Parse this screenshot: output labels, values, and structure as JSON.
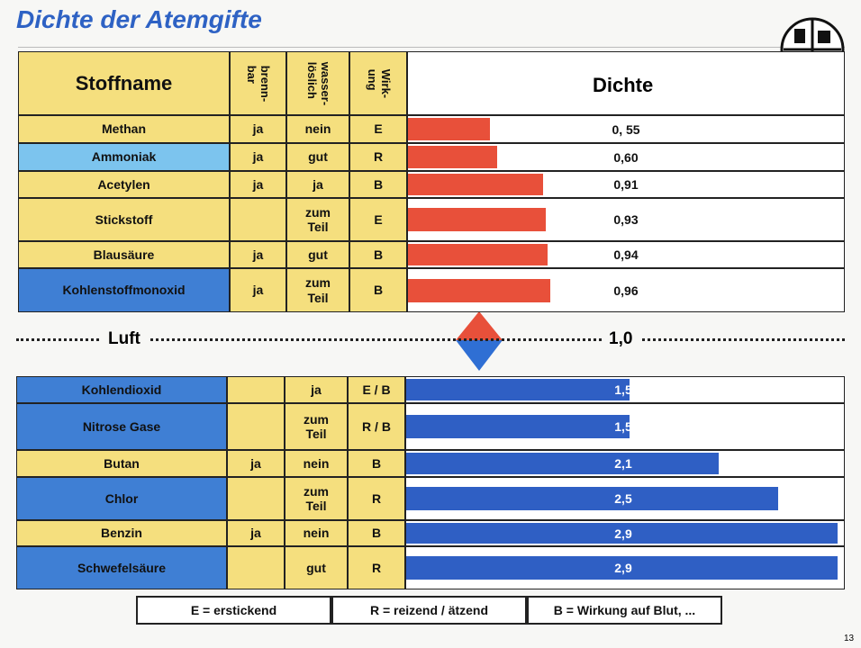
{
  "title": "Dichte der Atemgifte",
  "page_number": "13",
  "header": {
    "name": "Stoffname",
    "brennbar": "brenn-\nbar",
    "wasserloeslich": "wasser-\nlöslich",
    "wirkung": "Wirk-\nung",
    "dichte": "Dichte"
  },
  "upper": {
    "rows": [
      {
        "name": "Methan",
        "name_color": "#f5df7e",
        "brennbar": "ja",
        "wasserloeslich": "nein",
        "wirkung": "E",
        "density": 0.55,
        "density_label": "0, 55"
      },
      {
        "name": "Ammoniak",
        "name_color": "#7cc4ee",
        "brennbar": "ja",
        "wasserloeslich": "gut",
        "wirkung": "R",
        "density": 0.6,
        "density_label": "0,60"
      },
      {
        "name": "Acetylen",
        "name_color": "#f5df7e",
        "brennbar": "ja",
        "wasserloeslich": "ja",
        "wirkung": "B",
        "density": 0.91,
        "density_label": "0,91"
      },
      {
        "name": "Stickstoff",
        "name_color": "#f5df7e",
        "brennbar": null,
        "wasserloeslich": "zum Teil",
        "wirkung": "E",
        "density": 0.93,
        "density_label": "0,93"
      },
      {
        "name": "Blausäure",
        "name_color": "#f5df7e",
        "brennbar": "ja",
        "wasserloeslich": "gut",
        "wirkung": "B",
        "density": 0.94,
        "density_label": "0,94"
      },
      {
        "name": "Kohlenstoffmonoxid",
        "name_color": "#3f7fd4",
        "brennbar": "ja",
        "wasserloeslich": "zum Teil",
        "wirkung": "B",
        "density": 0.96,
        "density_label": "0,96"
      }
    ],
    "bar_color": "#e8503a"
  },
  "air": {
    "name": "Luft",
    "density": 1.0,
    "density_label": "1,0"
  },
  "lower": {
    "rows": [
      {
        "name": "Kohlendioxid",
        "name_color": "#3f7fd4",
        "brennbar": null,
        "wasserloeslich": "ja",
        "wirkung": "E / B",
        "density": 1.5,
        "density_label": "1,5"
      },
      {
        "name": "Nitrose Gase",
        "name_color": "#3f7fd4",
        "brennbar": null,
        "wasserloeslich": "zum Teil",
        "wirkung": "R / B",
        "density": 1.5,
        "density_label": "1,5"
      },
      {
        "name": "Butan",
        "name_color": "#f5df7e",
        "brennbar": "ja",
        "wasserloeslich": "nein",
        "wirkung": "B",
        "density": 2.1,
        "density_label": "2,1"
      },
      {
        "name": "Chlor",
        "name_color": "#3f7fd4",
        "brennbar": null,
        "wasserloeslich": "zum Teil",
        "wirkung": "R",
        "density": 2.5,
        "density_label": "2,5"
      },
      {
        "name": "Benzin",
        "name_color": "#f5df7e",
        "brennbar": "ja",
        "wasserloeslich": "nein",
        "wirkung": "B",
        "density": 2.9,
        "density_label": "2,9"
      },
      {
        "name": "Schwefelsäure",
        "name_color": "#3f7fd4",
        "brennbar": null,
        "wasserloeslich": "gut",
        "wirkung": "R",
        "density": 2.9,
        "density_label": "2,9"
      }
    ],
    "bar_color": "#2f5fc4"
  },
  "legend": [
    "E = erstickend",
    "R = reizend / ätzend",
    "B = Wirkung auf Blut, ..."
  ]
}
